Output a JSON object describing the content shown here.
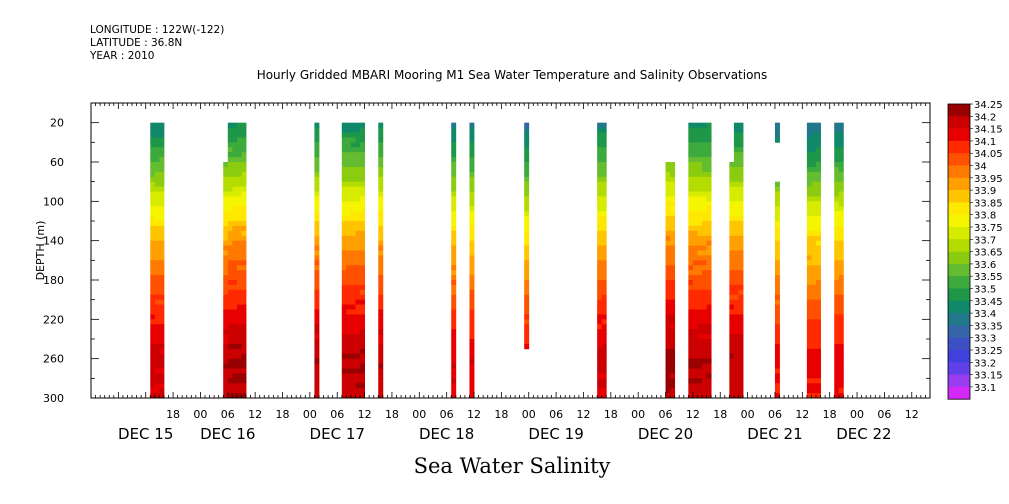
{
  "header": {
    "longitude": "LONGITUDE : 122W(-122)",
    "latitude": "LATITUDE : 36.8N",
    "year": "YEAR : 2010"
  },
  "chart_data": {
    "type": "heatmap",
    "title": "Hourly Gridded MBARI Mooring M1 Sea Water Temperature and Salinity Observations",
    "subtitle": "Sea Water Salinity",
    "ylabel": "DEPTH (m)",
    "xlabel": "",
    "x_hour_ticks": [
      {
        "hour": 18,
        "label": "18"
      },
      {
        "hour": 24,
        "label": "00"
      },
      {
        "hour": 30,
        "label": "06"
      },
      {
        "hour": 36,
        "label": "12"
      },
      {
        "hour": 42,
        "label": "18"
      },
      {
        "hour": 48,
        "label": "00"
      },
      {
        "hour": 54,
        "label": "06"
      },
      {
        "hour": 60,
        "label": "12"
      },
      {
        "hour": 66,
        "label": "18"
      },
      {
        "hour": 72,
        "label": "00"
      },
      {
        "hour": 78,
        "label": "06"
      },
      {
        "hour": 84,
        "label": "12"
      },
      {
        "hour": 90,
        "label": "18"
      },
      {
        "hour": 96,
        "label": "00"
      },
      {
        "hour": 102,
        "label": "06"
      },
      {
        "hour": 108,
        "label": "12"
      },
      {
        "hour": 114,
        "label": "18"
      },
      {
        "hour": 120,
        "label": "00"
      },
      {
        "hour": 126,
        "label": "06"
      },
      {
        "hour": 132,
        "label": "12"
      },
      {
        "hour": 138,
        "label": "18"
      },
      {
        "hour": 144,
        "label": "00"
      },
      {
        "hour": 150,
        "label": "06"
      },
      {
        "hour": 156,
        "label": "12"
      },
      {
        "hour": 162,
        "label": "18"
      },
      {
        "hour": 168,
        "label": "00"
      },
      {
        "hour": 174,
        "label": "06"
      },
      {
        "hour": 180,
        "label": "12"
      }
    ],
    "x_day_labels": [
      {
        "hour": 12,
        "label": "DEC 15"
      },
      {
        "hour": 30,
        "label": "DEC 16"
      },
      {
        "hour": 54,
        "label": "DEC 17"
      },
      {
        "hour": 78,
        "label": "DEC 18"
      },
      {
        "hour": 102,
        "label": "DEC 19"
      },
      {
        "hour": 126,
        "label": "DEC 20"
      },
      {
        "hour": 150,
        "label": "DEC 21"
      },
      {
        "hour": 169.5,
        "label": "DEC 22"
      }
    ],
    "xlim_hours": [
      0,
      184
    ],
    "y_ticks": [
      20,
      60,
      100,
      140,
      180,
      220,
      260,
      300
    ],
    "ylim": [
      0,
      300
    ],
    "colorbar": {
      "labels": [
        "34.25",
        "34.2",
        "34.15",
        "34.1",
        "34.05",
        "34",
        "33.95",
        "33.9",
        "33.85",
        "33.8",
        "33.75",
        "33.7",
        "33.65",
        "33.6",
        "33.55",
        "33.5",
        "33.45",
        "33.4",
        "33.35",
        "33.3",
        "33.25",
        "33.2",
        "33.15",
        "33.1"
      ],
      "colors": [
        "#990000",
        "#cc0000",
        "#e80000",
        "#ff2a00",
        "#ff5000",
        "#ff7800",
        "#ff9f00",
        "#ffc500",
        "#ffe800",
        "#f5f500",
        "#d7eb00",
        "#b4dc00",
        "#8ccc10",
        "#64bc30",
        "#3caa3c",
        "#1e9848",
        "#10886a",
        "#20788a",
        "#3564a8",
        "#3c50c4",
        "#4040dc",
        "#6040e8",
        "#9a3cf0",
        "#d428f8"
      ]
    },
    "profile_anchors": {
      "depth": [
        20,
        60,
        100,
        140,
        180,
        220,
        260,
        300
      ],
      "salinity": [
        33.45,
        33.6,
        33.78,
        33.95,
        34.05,
        34.15,
        34.22,
        34.2
      ]
    },
    "segments": [
      {
        "start": 13.0,
        "end": 16.0,
        "top": 20,
        "bottom": 300,
        "shift": 0.0
      },
      {
        "start": 29.0,
        "end": 30.0,
        "top": 60,
        "bottom": 300,
        "shift": 0.02
      },
      {
        "start": 30.0,
        "end": 34.0,
        "top": 20,
        "bottom": 300,
        "shift": 0.04
      },
      {
        "start": 49.0,
        "end": 50.0,
        "top": 20,
        "bottom": 300,
        "shift": 0.03
      },
      {
        "start": 55.0,
        "end": 60.0,
        "top": 20,
        "bottom": 300,
        "shift": 0.03
      },
      {
        "start": 63.0,
        "end": 64.0,
        "top": 20,
        "bottom": 300,
        "shift": 0.02
      },
      {
        "start": 79.0,
        "end": 80.0,
        "top": 20,
        "bottom": 300,
        "shift": -0.02
      },
      {
        "start": 83.0,
        "end": 84.0,
        "top": 20,
        "bottom": 300,
        "shift": -0.03
      },
      {
        "start": 95.0,
        "end": 96.0,
        "top": 20,
        "bottom": 250,
        "shift": -0.05
      },
      {
        "start": 111.0,
        "end": 113.0,
        "top": 20,
        "bottom": 300,
        "shift": 0.0
      },
      {
        "start": 126.0,
        "end": 128.0,
        "top": 60,
        "bottom": 300,
        "shift": 0.05
      },
      {
        "start": 131.0,
        "end": 136.0,
        "top": 20,
        "bottom": 300,
        "shift": 0.03
      },
      {
        "start": 140.0,
        "end": 141.0,
        "top": 60,
        "bottom": 300,
        "shift": 0.02
      },
      {
        "start": 141.0,
        "end": 143.0,
        "top": 20,
        "bottom": 300,
        "shift": 0.02
      },
      {
        "start": 150.0,
        "end": 151.0,
        "top": 20,
        "bottom": 40,
        "shift": -0.05
      },
      {
        "start": 150.0,
        "end": 151.0,
        "top": 80,
        "bottom": 300,
        "shift": -0.05
      },
      {
        "start": 157.0,
        "end": 160.0,
        "top": 20,
        "bottom": 300,
        "shift": -0.05
      },
      {
        "start": 163.0,
        "end": 165.0,
        "top": 20,
        "bottom": 300,
        "shift": -0.04
      }
    ]
  }
}
